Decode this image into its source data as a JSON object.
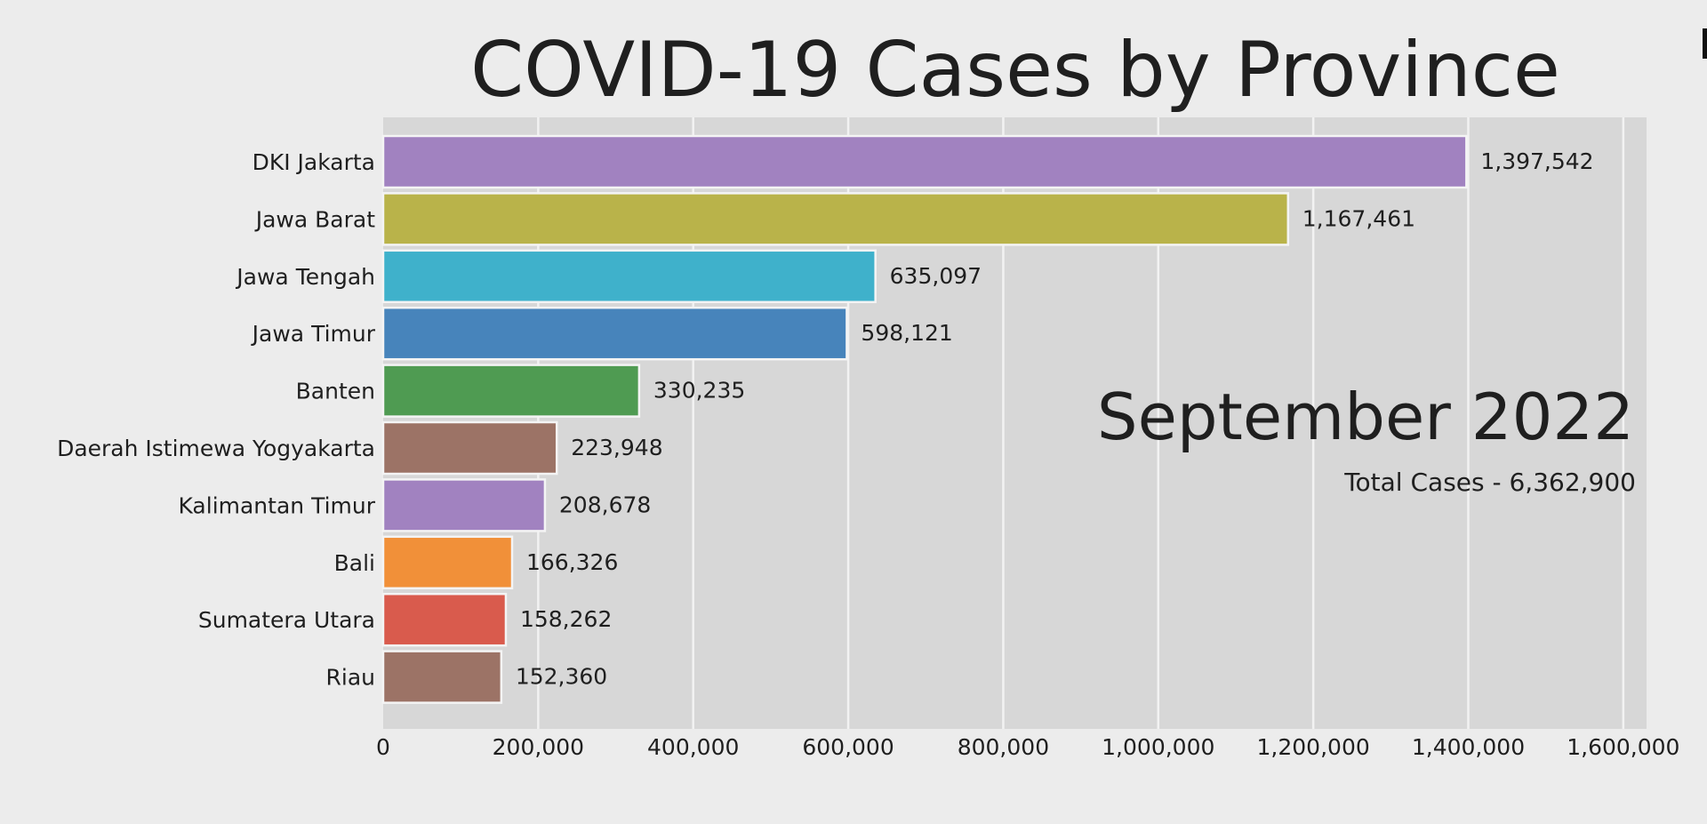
{
  "chart_data": {
    "type": "bar",
    "orientation": "horizontal",
    "title": "COVID-19 Cases by Province",
    "period_label": "September 2022",
    "total_label": "Total Cases - 6,362,900",
    "categories": [
      "DKI Jakarta",
      "Jawa Barat",
      "Jawa Tengah",
      "Jawa Timur",
      "Banten",
      "Daerah Istimewa Yogyakarta",
      "Kalimantan Timur",
      "Bali",
      "Sumatera Utara",
      "Riau"
    ],
    "values": [
      1397542,
      1167461,
      635097,
      598121,
      330235,
      223948,
      208678,
      166326,
      158262,
      152360
    ],
    "value_labels": [
      "1,397,542",
      "1,167,461",
      "635,097",
      "598,121",
      "330,235",
      "223,948",
      "208,678",
      "166,326",
      "158,262",
      "152,360"
    ],
    "colors": [
      "#a182c0",
      "#b9b34a",
      "#3fb1cb",
      "#4784bb",
      "#4f9b52",
      "#9c7366",
      "#a182c0",
      "#f19039",
      "#d95b4d",
      "#9c7366"
    ],
    "xlim": [
      0,
      1630000
    ],
    "xticks": [
      0,
      200000,
      400000,
      600000,
      800000,
      1000000,
      1200000,
      1400000,
      1600000
    ],
    "xtick_labels": [
      "0",
      "200,000",
      "400,000",
      "600,000",
      "800,000",
      "1,000,000",
      "1,200,000",
      "1,400,000",
      "1,600,000"
    ],
    "xlabel": "",
    "ylabel": "",
    "grid": true
  },
  "style": {
    "page_background": "#ececec",
    "plot_background": "#d7d7d7",
    "grid_color": "#f2f2f2",
    "text_color": "#1f1f1f"
  }
}
